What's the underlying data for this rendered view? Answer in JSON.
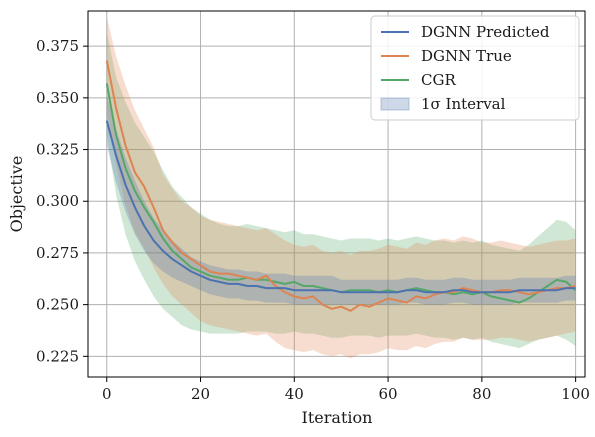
{
  "chart_data": {
    "type": "line",
    "xlabel": "Iteration",
    "ylabel": "Objective",
    "xlim": [
      -4,
      102
    ],
    "ylim": [
      0.215,
      0.392
    ],
    "xticks": [
      0,
      20,
      40,
      60,
      80,
      100
    ],
    "yticks": [
      0.225,
      0.25,
      0.275,
      0.3,
      0.325,
      0.35,
      0.375
    ],
    "xtick_labels": [
      "0",
      "20",
      "40",
      "60",
      "80",
      "100"
    ],
    "ytick_labels": [
      "0.225",
      "0.250",
      "0.275",
      "0.300",
      "0.325",
      "0.350",
      "0.375"
    ],
    "grid": true,
    "legend_position": "top-right",
    "legend_band_label": "1σ Interval",
    "series": [
      {
        "name": "DGNN Predicted",
        "color": "#4c72b0",
        "band_color": "#4c72b0",
        "x": [
          0,
          2,
          4,
          6,
          8,
          10,
          12,
          14,
          16,
          18,
          20,
          22,
          24,
          26,
          28,
          30,
          32,
          34,
          36,
          38,
          40,
          42,
          44,
          46,
          48,
          50,
          52,
          54,
          56,
          58,
          60,
          62,
          64,
          66,
          68,
          70,
          72,
          74,
          76,
          78,
          80,
          82,
          84,
          86,
          88,
          90,
          92,
          94,
          96,
          98,
          100
        ],
        "y": [
          0.339,
          0.322,
          0.308,
          0.297,
          0.288,
          0.281,
          0.276,
          0.272,
          0.269,
          0.266,
          0.264,
          0.262,
          0.261,
          0.26,
          0.26,
          0.259,
          0.259,
          0.258,
          0.258,
          0.258,
          0.257,
          0.257,
          0.257,
          0.257,
          0.257,
          0.256,
          0.256,
          0.256,
          0.256,
          0.256,
          0.256,
          0.256,
          0.257,
          0.257,
          0.256,
          0.256,
          0.256,
          0.257,
          0.257,
          0.256,
          0.256,
          0.256,
          0.256,
          0.256,
          0.257,
          0.257,
          0.257,
          0.257,
          0.257,
          0.258,
          0.258
        ],
        "lower": [
          0.327,
          0.309,
          0.295,
          0.284,
          0.276,
          0.27,
          0.266,
          0.263,
          0.261,
          0.259,
          0.257,
          0.255,
          0.254,
          0.253,
          0.253,
          0.252,
          0.252,
          0.251,
          0.251,
          0.251,
          0.25,
          0.25,
          0.25,
          0.25,
          0.25,
          0.25,
          0.25,
          0.25,
          0.25,
          0.25,
          0.25,
          0.25,
          0.251,
          0.251,
          0.25,
          0.25,
          0.25,
          0.251,
          0.251,
          0.25,
          0.25,
          0.25,
          0.25,
          0.25,
          0.251,
          0.251,
          0.251,
          0.251,
          0.251,
          0.252,
          0.252
        ],
        "upper": [
          0.351,
          0.335,
          0.321,
          0.31,
          0.3,
          0.292,
          0.286,
          0.281,
          0.277,
          0.273,
          0.271,
          0.269,
          0.268,
          0.267,
          0.267,
          0.266,
          0.266,
          0.265,
          0.265,
          0.265,
          0.264,
          0.264,
          0.264,
          0.264,
          0.264,
          0.262,
          0.262,
          0.262,
          0.262,
          0.262,
          0.262,
          0.262,
          0.263,
          0.263,
          0.262,
          0.262,
          0.262,
          0.263,
          0.263,
          0.262,
          0.262,
          0.262,
          0.262,
          0.262,
          0.263,
          0.263,
          0.263,
          0.263,
          0.263,
          0.264,
          0.264
        ]
      },
      {
        "name": "DGNN True",
        "color": "#dd8452",
        "band_color": "#dd8452",
        "x": [
          0,
          2,
          4,
          6,
          8,
          10,
          12,
          14,
          16,
          18,
          20,
          22,
          24,
          26,
          28,
          30,
          32,
          34,
          36,
          38,
          40,
          42,
          44,
          46,
          48,
          50,
          52,
          54,
          56,
          58,
          60,
          62,
          64,
          66,
          68,
          70,
          72,
          74,
          76,
          78,
          80,
          82,
          84,
          86,
          88,
          90,
          92,
          94,
          96,
          98,
          100
        ],
        "y": [
          0.368,
          0.345,
          0.327,
          0.314,
          0.307,
          0.297,
          0.286,
          0.28,
          0.275,
          0.272,
          0.269,
          0.266,
          0.265,
          0.265,
          0.264,
          0.263,
          0.262,
          0.264,
          0.259,
          0.256,
          0.254,
          0.253,
          0.254,
          0.25,
          0.248,
          0.249,
          0.247,
          0.25,
          0.249,
          0.251,
          0.253,
          0.252,
          0.251,
          0.254,
          0.253,
          0.255,
          0.256,
          0.256,
          0.258,
          0.257,
          0.256,
          0.256,
          0.257,
          0.257,
          0.256,
          0.255,
          0.256,
          0.257,
          0.258,
          0.258,
          0.259
        ],
        "lower": [
          0.344,
          0.318,
          0.298,
          0.285,
          0.277,
          0.268,
          0.26,
          0.254,
          0.25,
          0.246,
          0.242,
          0.24,
          0.239,
          0.238,
          0.237,
          0.236,
          0.235,
          0.236,
          0.232,
          0.229,
          0.228,
          0.227,
          0.228,
          0.226,
          0.225,
          0.226,
          0.224,
          0.226,
          0.226,
          0.227,
          0.229,
          0.228,
          0.228,
          0.23,
          0.229,
          0.231,
          0.232,
          0.232,
          0.234,
          0.233,
          0.233,
          0.233,
          0.234,
          0.234,
          0.233,
          0.232,
          0.233,
          0.234,
          0.235,
          0.236,
          0.237
        ],
        "upper": [
          0.389,
          0.37,
          0.356,
          0.344,
          0.335,
          0.326,
          0.313,
          0.306,
          0.3,
          0.297,
          0.293,
          0.291,
          0.29,
          0.289,
          0.288,
          0.287,
          0.286,
          0.287,
          0.284,
          0.281,
          0.279,
          0.278,
          0.279,
          0.276,
          0.275,
          0.276,
          0.274,
          0.276,
          0.276,
          0.277,
          0.279,
          0.278,
          0.277,
          0.28,
          0.279,
          0.281,
          0.282,
          0.281,
          0.283,
          0.282,
          0.28,
          0.28,
          0.281,
          0.28,
          0.279,
          0.278,
          0.279,
          0.28,
          0.281,
          0.281,
          0.282
        ]
      },
      {
        "name": "CGR",
        "color": "#55a868",
        "band_color": "#55a868",
        "x": [
          0,
          2,
          4,
          6,
          8,
          10,
          12,
          14,
          16,
          18,
          20,
          22,
          24,
          26,
          28,
          30,
          32,
          34,
          36,
          38,
          40,
          42,
          44,
          46,
          48,
          50,
          52,
          54,
          56,
          58,
          60,
          62,
          64,
          66,
          68,
          70,
          72,
          74,
          76,
          78,
          80,
          82,
          84,
          86,
          88,
          90,
          92,
          94,
          96,
          98,
          100
        ],
        "y": [
          0.357,
          0.332,
          0.316,
          0.305,
          0.297,
          0.29,
          0.282,
          0.276,
          0.272,
          0.268,
          0.266,
          0.264,
          0.263,
          0.262,
          0.262,
          0.263,
          0.262,
          0.262,
          0.261,
          0.26,
          0.261,
          0.259,
          0.259,
          0.258,
          0.257,
          0.256,
          0.257,
          0.257,
          0.257,
          0.256,
          0.257,
          0.256,
          0.257,
          0.258,
          0.257,
          0.256,
          0.256,
          0.255,
          0.256,
          0.255,
          0.256,
          0.254,
          0.253,
          0.252,
          0.251,
          0.253,
          0.256,
          0.259,
          0.262,
          0.261,
          0.257
        ],
        "lower": [
          0.332,
          0.303,
          0.284,
          0.271,
          0.262,
          0.254,
          0.248,
          0.244,
          0.24,
          0.238,
          0.237,
          0.236,
          0.236,
          0.236,
          0.236,
          0.237,
          0.237,
          0.237,
          0.236,
          0.236,
          0.237,
          0.236,
          0.236,
          0.235,
          0.234,
          0.234,
          0.235,
          0.235,
          0.235,
          0.234,
          0.235,
          0.235,
          0.235,
          0.236,
          0.235,
          0.234,
          0.234,
          0.233,
          0.234,
          0.233,
          0.234,
          0.232,
          0.231,
          0.23,
          0.229,
          0.231,
          0.233,
          0.234,
          0.235,
          0.233,
          0.23
        ],
        "upper": [
          0.382,
          0.36,
          0.348,
          0.338,
          0.331,
          0.324,
          0.315,
          0.307,
          0.302,
          0.297,
          0.294,
          0.291,
          0.289,
          0.288,
          0.288,
          0.289,
          0.288,
          0.287,
          0.286,
          0.285,
          0.286,
          0.284,
          0.284,
          0.283,
          0.282,
          0.281,
          0.282,
          0.282,
          0.282,
          0.281,
          0.282,
          0.281,
          0.282,
          0.283,
          0.282,
          0.281,
          0.281,
          0.28,
          0.281,
          0.28,
          0.281,
          0.279,
          0.278,
          0.277,
          0.276,
          0.279,
          0.283,
          0.287,
          0.291,
          0.29,
          0.286
        ]
      }
    ]
  }
}
